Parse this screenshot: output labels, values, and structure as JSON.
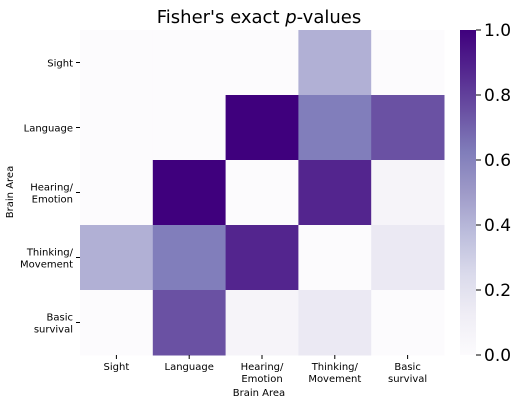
{
  "chart_data": {
    "type": "heatmap",
    "title_main": "Fisher's exact ",
    "title_italic": "p",
    "title_tail": "-values",
    "xlabel": "Brain Area",
    "ylabel": "Brain Area",
    "x_categories": [
      "Sight",
      "Language",
      "Hearing/\nEmotion",
      "Thinking/\nMovement",
      "Basic\nsurvival"
    ],
    "y_categories": [
      "Sight",
      "Language",
      "Hearing/\nEmotion",
      "Thinking/\nMovement",
      "Basic\nsurvival"
    ],
    "values": [
      [
        0.0,
        0.0,
        0.0,
        0.42,
        0.0
      ],
      [
        0.0,
        0.0,
        1.0,
        0.62,
        0.75
      ],
      [
        0.0,
        1.0,
        0.0,
        0.88,
        0.06
      ],
      [
        0.42,
        0.62,
        0.88,
        0.0,
        0.15
      ],
      [
        0.0,
        0.75,
        0.06,
        0.15,
        0.0
      ]
    ],
    "colorscale": "Purples",
    "vmin": 0.0,
    "vmax": 1.0,
    "colorbar_ticks": [
      "0.0",
      "0.2",
      "0.4",
      "0.6",
      "0.8",
      "1.0"
    ]
  }
}
